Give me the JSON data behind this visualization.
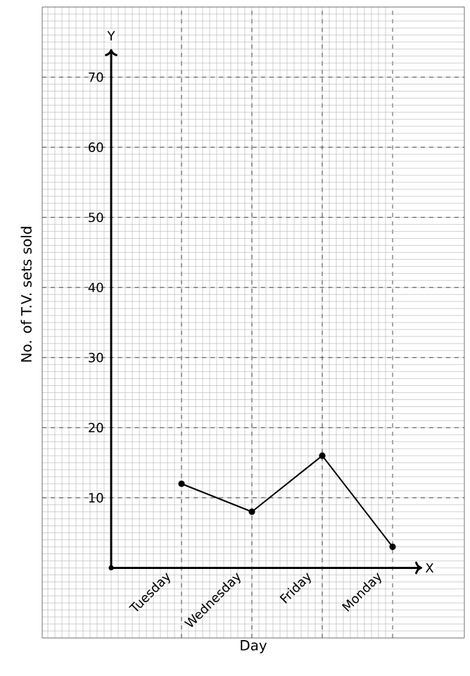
{
  "chart_data": {
    "type": "line",
    "xlabel": "Day",
    "ylabel": "No. of T.V. sets sold",
    "categories": [
      "Tuesday",
      "Wednesday",
      "Friday",
      "Monday"
    ],
    "values": [
      12,
      8,
      16,
      3
    ],
    "color": "#000000",
    "ylim": [
      -10,
      80
    ],
    "yticks": [
      10,
      20,
      30,
      40,
      50,
      60,
      70
    ],
    "grid": true,
    "marker": "circle",
    "line_style": "solid",
    "annotations": [
      "X",
      "Y"
    ]
  }
}
